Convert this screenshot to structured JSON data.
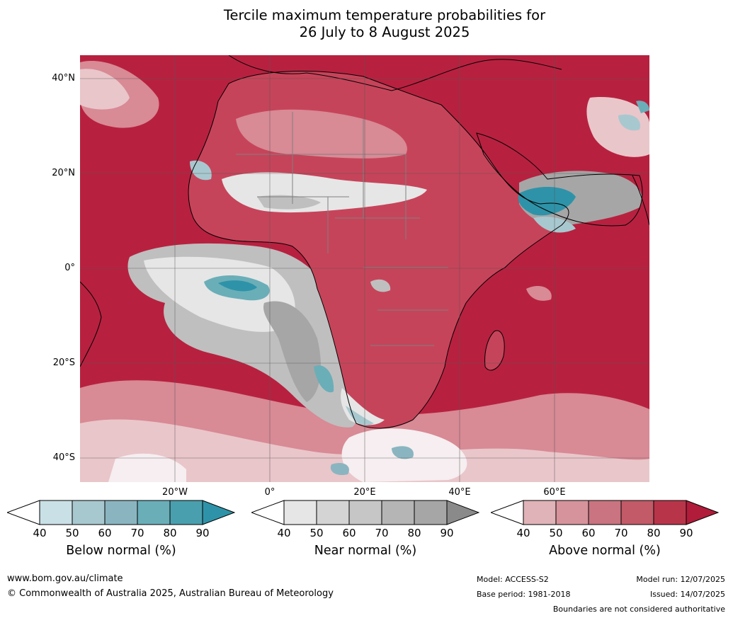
{
  "title_line1": "Tercile maximum temperature probabilities for",
  "title_line2": "26 July to 8 August 2025",
  "lat_labels": [
    "40°N",
    "20°N",
    "0°",
    "20°S",
    "40°S"
  ],
  "lon_labels": [
    "20°W",
    "0°",
    "20°E",
    "40°E",
    "60°E"
  ],
  "colorbars": [
    {
      "label": "Below normal (%)",
      "ticks": [
        "40",
        "50",
        "60",
        "70",
        "80",
        "90"
      ],
      "colors": [
        "#ffffff",
        "#c9e0e6",
        "#a8c8cf",
        "#8ab5c0",
        "#6aaeb8",
        "#4a9fae",
        "#2e93a8"
      ]
    },
    {
      "label": "Near normal (%)",
      "ticks": [
        "40",
        "50",
        "60",
        "70",
        "80",
        "90"
      ],
      "colors": [
        "#ffffff",
        "#e6e6e6",
        "#d4d4d4",
        "#c6c6c6",
        "#b5b5b5",
        "#a6a6a6",
        "#8a8a8a"
      ]
    },
    {
      "label": "Above normal (%)",
      "ticks": [
        "40",
        "50",
        "60",
        "70",
        "80",
        "90"
      ],
      "colors": [
        "#ffffff",
        "#e0b3b8",
        "#d6939b",
        "#c97480",
        "#c25a68",
        "#b83549",
        "#b01c39"
      ]
    }
  ],
  "footer": {
    "website": "www.bom.gov.au/climate",
    "copyright": "© Commonwealth of Australia 2025, Australian Bureau of Meteorology",
    "model": "Model: ACCESS-S2",
    "base_period": "Base period: 1981-2018",
    "model_run": "Model run: 12/07/2025",
    "issued": "Issued: 14/07/2025",
    "disclaimer": "Boundaries are not considered authoritative"
  },
  "map_colors": {
    "ocean_above": "#b7213f",
    "land_above": "#c6445a",
    "light_above": "#d88a95",
    "pale": "#e9c6ca",
    "near_light": "#e6e6e6",
    "near_mid": "#bfbfbf",
    "near_dark": "#a6a6a6",
    "below_light": "#c9e0e6",
    "below_dark": "#2e93a8",
    "coast": "#000000",
    "border": "#808080",
    "grid": "#555555"
  }
}
